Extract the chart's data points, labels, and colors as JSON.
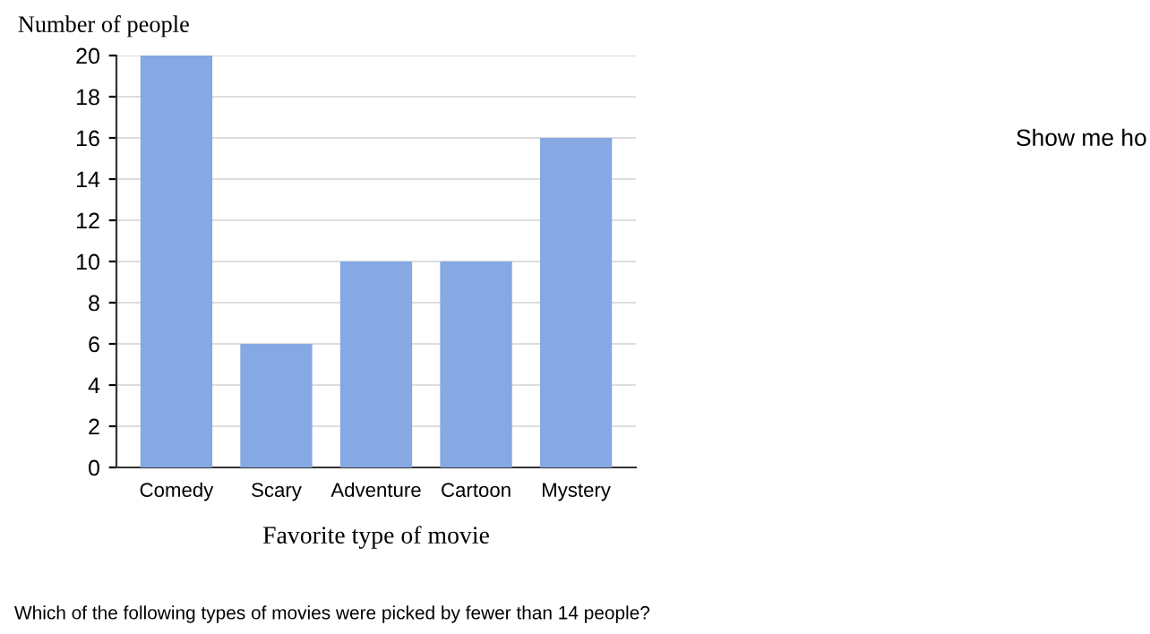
{
  "chart_data": {
    "type": "bar",
    "ylabel": "Number of people",
    "xlabel": "Favorite type of movie",
    "categories": [
      "Comedy",
      "Scary",
      "Adventure",
      "Cartoon",
      "Mystery"
    ],
    "values": [
      20,
      6,
      10,
      10,
      16
    ],
    "color": "#86a8e3",
    "ylim": [
      0,
      20
    ],
    "yticks": [
      0,
      2,
      4,
      6,
      8,
      10,
      12,
      14,
      16,
      18,
      20
    ],
    "grid": "y",
    "annotations": [
      "Which of the following types of movies were picked by fewer than 14 people?",
      "Show me ho"
    ]
  }
}
